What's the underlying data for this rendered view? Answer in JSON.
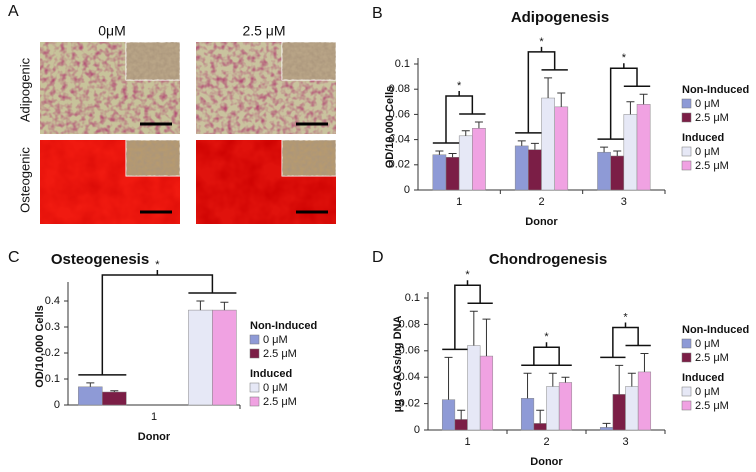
{
  "panel_a": {
    "panel": "A",
    "columns": [
      "0μM",
      "2.5 μM"
    ],
    "rows": [
      "Adipogenic",
      "Osteogenic"
    ]
  },
  "chart_data": [
    {
      "type": "bar",
      "panel": "B",
      "title": "Adipogenesis",
      "x_label": "Donor",
      "y_label": "OD/10,000 Cells",
      "categories": [
        "1",
        "2",
        "3"
      ],
      "ylim": [
        0,
        0.1
      ],
      "yticks": [
        0,
        0.02,
        0.04,
        0.06,
        0.08,
        0.1
      ],
      "significance": [
        "*",
        "*",
        "*"
      ],
      "series": [
        {
          "group": "Non-Induced",
          "name": "0 μM",
          "color": "#8e9ad6",
          "values": [
            0.028,
            0.035,
            0.03
          ],
          "errors": [
            0.003,
            0.004,
            0.004
          ]
        },
        {
          "group": "Non-Induced",
          "name": "2.5 μM",
          "color": "#7b1e46",
          "values": [
            0.026,
            0.032,
            0.027
          ],
          "errors": [
            0.003,
            0.005,
            0.004
          ]
        },
        {
          "group": "Induced",
          "name": "0 μM",
          "color": "#e6e8f6",
          "values": [
            0.043,
            0.073,
            0.06
          ],
          "errors": [
            0.004,
            0.016,
            0.01
          ]
        },
        {
          "group": "Induced",
          "name": "2.5 μM",
          "color": "#f0a2e2",
          "values": [
            0.049,
            0.066,
            0.068
          ],
          "errors": [
            0.005,
            0.011,
            0.008
          ]
        }
      ]
    },
    {
      "type": "bar",
      "panel": "C",
      "title": "Osteogenesis",
      "x_label": "Donor",
      "y_label": "OD/10,000 Cells",
      "categories": [
        "1"
      ],
      "ylim": [
        0,
        0.45
      ],
      "yticks": [
        0,
        0.1,
        0.2,
        0.3,
        0.4
      ],
      "significance": [
        "*"
      ],
      "series": [
        {
          "group": "Non-Induced",
          "name": "0 μM",
          "color": "#8e9ad6",
          "values": [
            0.07
          ],
          "errors": [
            0.015
          ]
        },
        {
          "group": "Non-Induced",
          "name": "2.5 μM",
          "color": "#7b1e46",
          "values": [
            0.05
          ],
          "errors": [
            0.005
          ]
        },
        {
          "group": "Induced",
          "name": "0 μM",
          "color": "#e6e8f6",
          "values": [
            0.365
          ],
          "errors": [
            0.035
          ]
        },
        {
          "group": "Induced",
          "name": "2.5 μM",
          "color": "#f0a2e2",
          "values": [
            0.365
          ],
          "errors": [
            0.03
          ]
        }
      ]
    },
    {
      "type": "bar",
      "panel": "D",
      "title": "Chondrogenesis",
      "x_label": "Donor",
      "y_label": "µg sGAGs/ng DNA",
      "categories": [
        "1",
        "2",
        "3"
      ],
      "ylim": [
        0,
        0.1
      ],
      "yticks": [
        0,
        0.02,
        0.04,
        0.06,
        0.08,
        0.1
      ],
      "significance": [
        "*",
        "*",
        "*"
      ],
      "series": [
        {
          "group": "Non-Induced",
          "name": "0 μM",
          "color": "#8e9ad6",
          "values": [
            0.023,
            0.024,
            0.002
          ],
          "errors": [
            0.032,
            0.019,
            0.003
          ]
        },
        {
          "group": "Non-Induced",
          "name": "2.5 μM",
          "color": "#7b1e46",
          "values": [
            0.008,
            0.005,
            0.027
          ],
          "errors": [
            0.007,
            0.01,
            0.022
          ]
        },
        {
          "group": "Induced",
          "name": "0 μM",
          "color": "#e6e8f6",
          "values": [
            0.064,
            0.033,
            0.033
          ],
          "errors": [
            0.026,
            0.01,
            0.01
          ]
        },
        {
          "group": "Induced",
          "name": "2.5 μM",
          "color": "#f0a2e2",
          "values": [
            0.056,
            0.036,
            0.044
          ],
          "errors": [
            0.028,
            0.004,
            0.014
          ]
        }
      ]
    }
  ]
}
